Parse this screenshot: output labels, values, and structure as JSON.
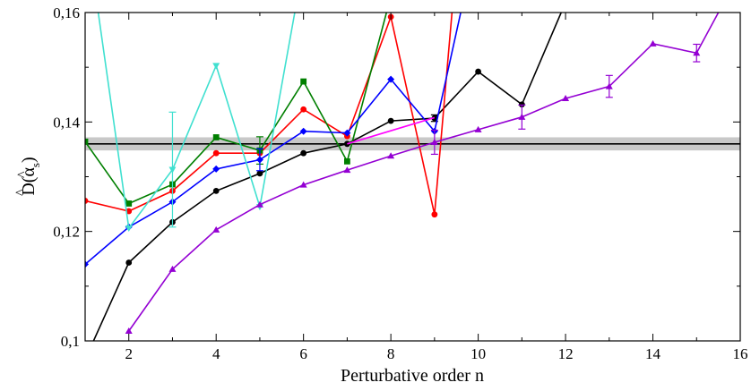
{
  "chart_data": {
    "type": "line",
    "title": "",
    "xlabel": "Perturbative order n",
    "ylabel_main": "D",
    "ylabel_arg": "(α",
    "ylabel_sub": "s",
    "ylabel_close": ")",
    "xlim": [
      1,
      16
    ],
    "ylim": [
      0.1,
      0.16
    ],
    "x_ticks": [
      2,
      4,
      6,
      8,
      10,
      12,
      14,
      16
    ],
    "x_tick_labels": [
      "2",
      "4",
      "6",
      "8",
      "10",
      "12",
      "14",
      "16"
    ],
    "y_ticks": [
      0.1,
      0.12,
      0.14,
      0.16
    ],
    "y_tick_labels": [
      "0,1",
      "0,12",
      "0,14",
      "0,16"
    ],
    "grid": false,
    "band": {
      "center": 0.136,
      "low": 0.1348,
      "high": 0.1372,
      "color": "#c8c8c8"
    },
    "series": [
      {
        "color": "#000000",
        "marker": "circle",
        "x": [
          1,
          2,
          3,
          4,
          5,
          6,
          7,
          8,
          9,
          10,
          11,
          11.9
        ],
        "y": [
          0.0966,
          0.1143,
          0.1217,
          0.1274,
          0.1306,
          0.1343,
          0.136,
          0.1402,
          0.1407,
          0.1492,
          0.1432,
          0.16
        ],
        "errors": [
          null,
          null,
          null,
          null,
          null,
          null,
          null,
          null,
          0.0006,
          null,
          null,
          null
        ]
      },
      {
        "color": "#ff0000",
        "marker": "circle",
        "x": [
          1,
          2,
          3,
          4,
          5,
          6,
          7,
          8,
          9,
          9.4
        ],
        "y": [
          0.1256,
          0.1237,
          0.1274,
          0.1343,
          0.1343,
          0.1423,
          0.1374,
          0.1592,
          0.1231,
          0.16
        ],
        "errors": [
          null,
          null,
          null,
          null,
          null,
          null,
          null,
          null,
          null,
          null
        ]
      },
      {
        "color": "#007f00",
        "marker": "square",
        "x": [
          1,
          2,
          3,
          4,
          5,
          6,
          7,
          7.9
        ],
        "y": [
          0.1364,
          0.1251,
          0.1286,
          0.1372,
          0.1348,
          0.1474,
          0.1328,
          0.16
        ],
        "errors": [
          null,
          null,
          null,
          null,
          0.0025,
          null,
          null,
          null
        ]
      },
      {
        "color": "#0000ff",
        "marker": "diamond",
        "x": [
          1,
          2,
          3,
          4,
          5,
          6,
          7,
          8,
          9,
          9.6
        ],
        "y": [
          0.114,
          0.1208,
          0.1254,
          0.1314,
          0.1331,
          0.1383,
          0.138,
          0.1478,
          0.1383,
          0.16
        ],
        "errors": [
          null,
          null,
          null,
          null,
          0.002,
          null,
          null,
          null,
          null,
          null
        ]
      },
      {
        "color": "#40e0d0",
        "marker": "triangle-down",
        "x": [
          1.3,
          2,
          3,
          4,
          5,
          5.8
        ],
        "y": [
          0.16,
          0.1206,
          0.1313,
          0.1503,
          0.1245,
          0.16
        ],
        "errors": [
          null,
          null,
          0.0105,
          null,
          null,
          null
        ]
      },
      {
        "color": "#ff00ff",
        "marker": "none",
        "x": [
          7,
          9
        ],
        "y": [
          0.136,
          0.1408
        ],
        "errors": [
          null,
          null
        ]
      },
      {
        "color": "#9400d3",
        "marker": "triangle-up",
        "x": [
          2,
          3,
          4,
          5,
          6,
          7,
          8,
          9,
          10,
          11,
          12,
          13,
          14,
          15,
          15.5
        ],
        "y": [
          0.1018,
          0.1131,
          0.1203,
          0.1249,
          0.1285,
          0.1312,
          0.1338,
          0.1363,
          0.1386,
          0.1409,
          0.1443,
          0.1465,
          0.1543,
          0.1526,
          0.16
        ],
        "errors": [
          null,
          null,
          null,
          null,
          null,
          null,
          null,
          0.0022,
          null,
          0.0022,
          null,
          0.002,
          null,
          0.0016,
          null
        ]
      }
    ]
  }
}
